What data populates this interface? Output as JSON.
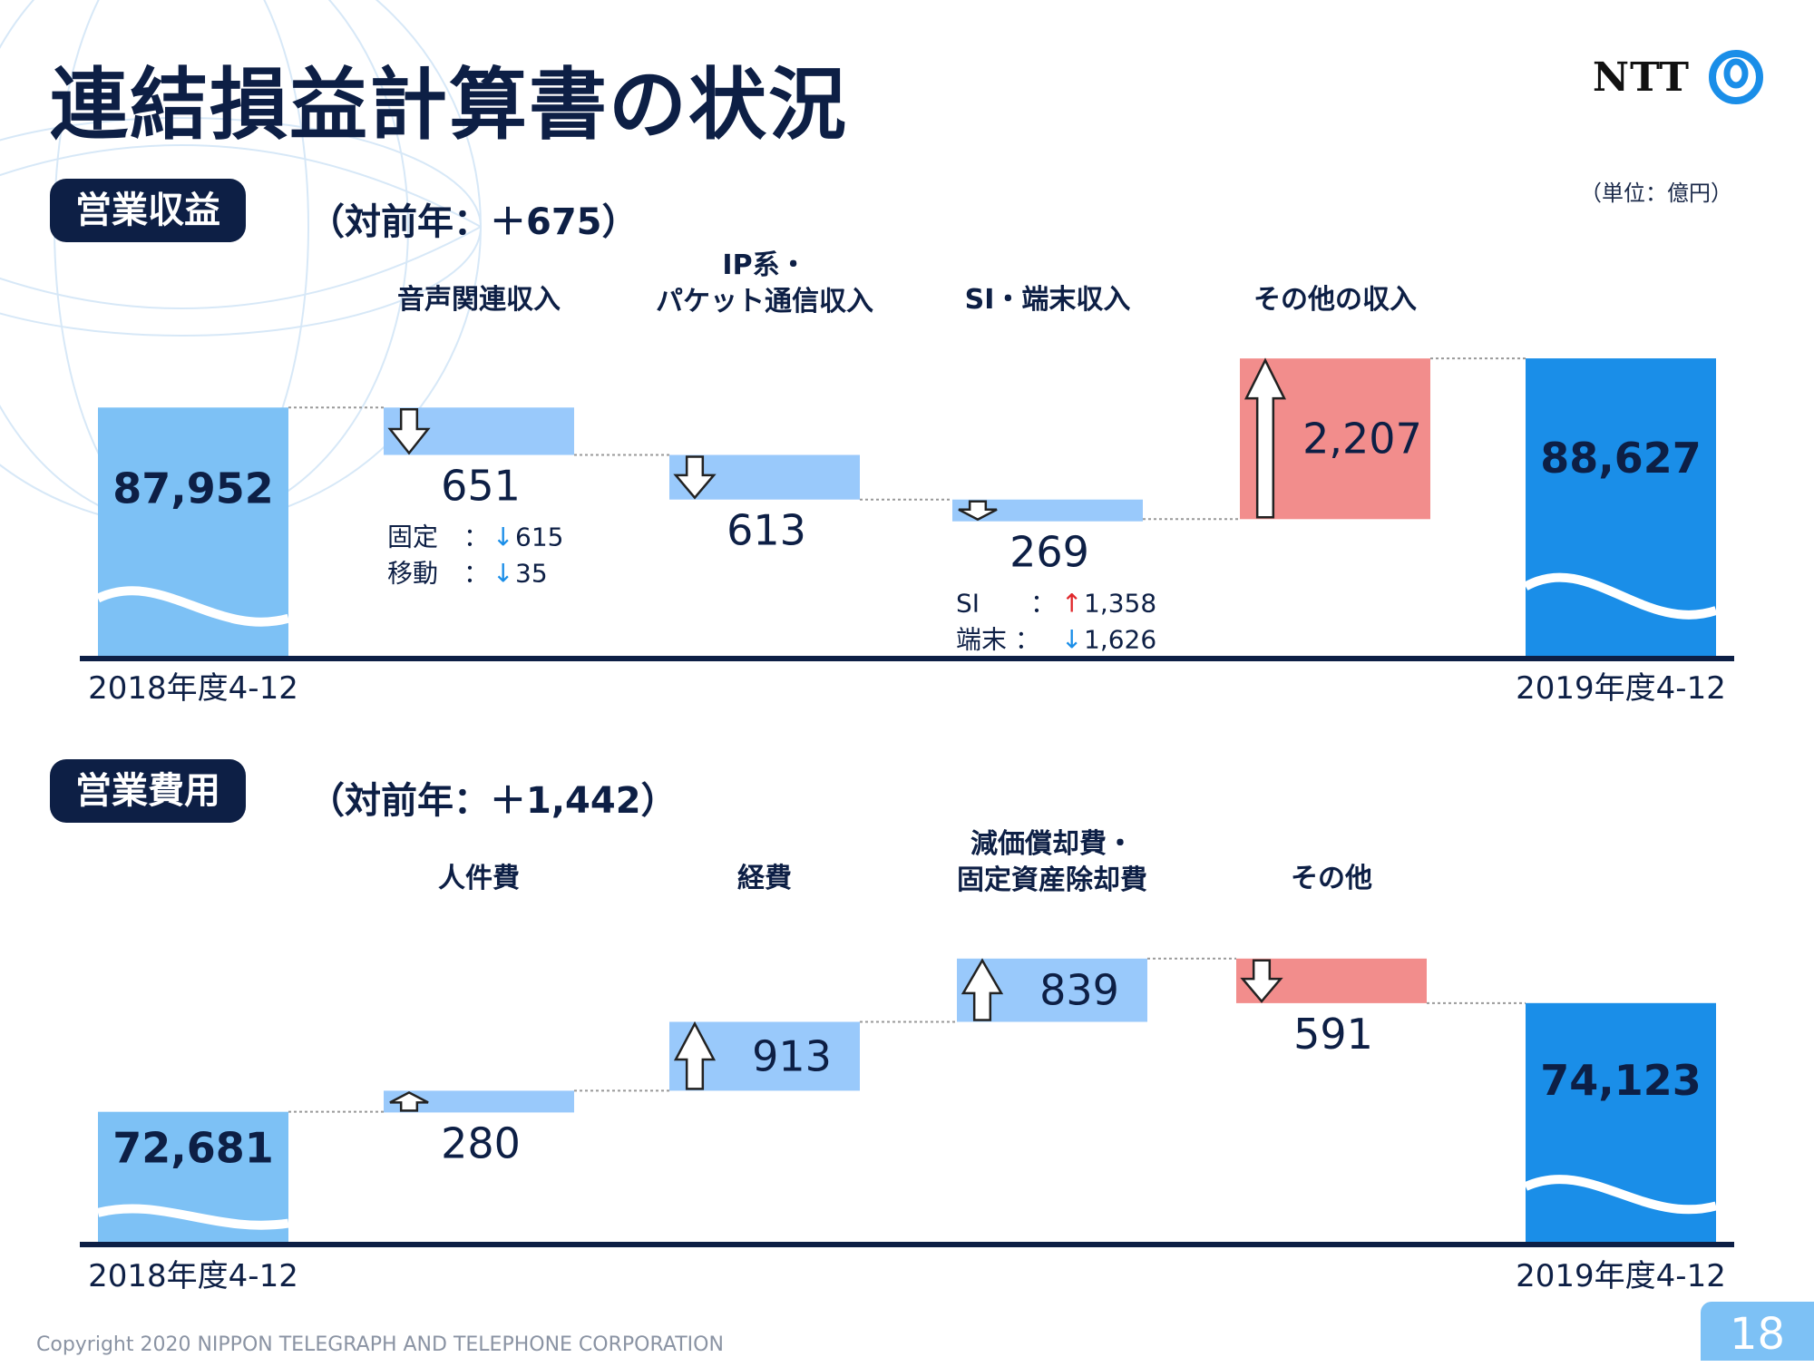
{
  "title": "連結損益計算書の状況",
  "logo_text": "NTT",
  "unit": "（単位：億円）",
  "copyright": "Copyright 2020 NIPPON TELEGRAPH AND TELEPHONE CORPORATION",
  "page_number": "18",
  "colors": {
    "navy": "#0d1f45",
    "light_blue": "#7dc1f5",
    "bright_blue": "#1a8ee8",
    "step_blue": "#99c9fb",
    "step_red": "#f28d8c",
    "arrow_red": "#e0282c",
    "arrow_blue": "#1a8ee8"
  },
  "chart_data": [
    {
      "type": "waterfall",
      "panel_label": "営業収益",
      "delta_text": "（対前年：＋675）",
      "start": {
        "label": "2018年度4-12",
        "value": 87952,
        "value_text": "87,952"
      },
      "end": {
        "label": "2019年度4-12",
        "value": 88627,
        "value_text": "88,627"
      },
      "steps": [
        {
          "category": [
            "音声関連収入"
          ],
          "change": -651,
          "value_text": "651",
          "color": "blue",
          "details": [
            {
              "label": "固定　：",
              "dir": "down",
              "value": "615"
            },
            {
              "label": "移動　：",
              "dir": "down",
              "value": "35"
            }
          ]
        },
        {
          "category": [
            "IP系・",
            "パケット通信収入"
          ],
          "change": -613,
          "value_text": "613",
          "color": "blue",
          "details": []
        },
        {
          "category": [
            "SI・端末収入"
          ],
          "change": -269,
          "value_text": "269",
          "color": "blue",
          "details": [
            {
              "label": "SI　　：",
              "dir": "up",
              "value": "1,358"
            },
            {
              "label": "端末 ：",
              "dir": "down",
              "value": "1,626"
            }
          ]
        },
        {
          "category": [
            "その他の収入"
          ],
          "change": 2207,
          "value_text": "2,207",
          "color": "red",
          "details": []
        }
      ]
    },
    {
      "type": "waterfall",
      "panel_label": "営業費用",
      "delta_text": "（対前年：＋1,442）",
      "start": {
        "label": "2018年度4-12",
        "value": 72681,
        "value_text": "72,681"
      },
      "end": {
        "label": "2019年度4-12",
        "value": 74123,
        "value_text": "74,123"
      },
      "steps": [
        {
          "category": [
            "人件費"
          ],
          "change": 280,
          "value_text": "280",
          "color": "blue",
          "details": []
        },
        {
          "category": [
            "経費"
          ],
          "change": 913,
          "value_text": "913",
          "color": "blue",
          "details": []
        },
        {
          "category": [
            "減価償却費・",
            "固定資産除却費"
          ],
          "change": 839,
          "value_text": "839",
          "color": "blue",
          "details": []
        },
        {
          "category": [
            "その他"
          ],
          "change": -591,
          "value_text": "591",
          "color": "red",
          "details": []
        }
      ]
    }
  ]
}
